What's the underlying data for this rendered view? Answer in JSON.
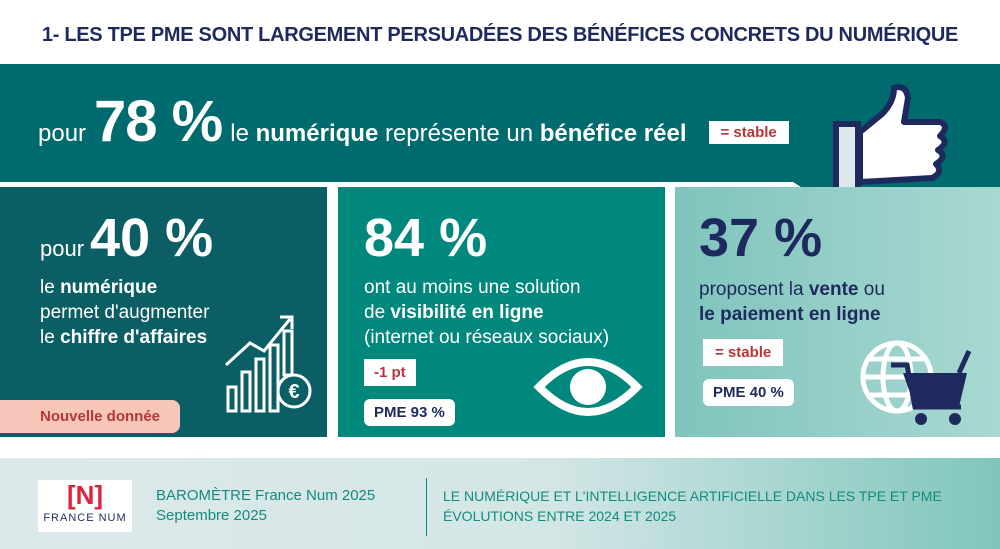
{
  "title": "1- LES TPE PME SONT LARGEMENT PERSUADÉES DES BÉNÉFICES CONCRETS DU NUMÉRIQUE",
  "headline": {
    "prefix": "pour",
    "value": "78 %",
    "t1": "le",
    "b1": "numérique",
    "t2": "représente un",
    "b2": "bénéfice réel",
    "badge": "= stable"
  },
  "cards": [
    {
      "prefix": "pour",
      "value": "40 %",
      "l1b": "le ",
      "l1": "numérique",
      "l2": "permet d'augmenter",
      "l3a": "le ",
      "l3": "chiffre d'affaires",
      "badge": "Nouvelle donnée"
    },
    {
      "value": "84 %",
      "l1": "ont au moins une solution",
      "l2a": "de ",
      "l2": "visibilité en ligne",
      "l3": "(internet ou réseaux sociaux)",
      "badge": "-1 pt",
      "pme": "PME 93 %"
    },
    {
      "value": "37 %",
      "l1a": "proposent la ",
      "l1": "vente",
      "l1c": " ou",
      "l2": "le paiement en ligne",
      "badge": "= stable",
      "pme": "PME 40 %"
    }
  ],
  "footer": {
    "logo_mark": "[N]",
    "logo_text": "FRANCE NUM",
    "line1": "BAROMÈTRE France Num 2025",
    "line2": "Septembre 2025",
    "right1": "LE NUMÉRIQUE ET L'INTELLIGENCE ARTIFICIELLE DANS LES TPE ET PME",
    "right2": "ÉVOLUTIONS ENTRE 2024 ET 2025"
  },
  "colors": {
    "navy": "#1e2a5e",
    "teal_dark": "#006b6e",
    "teal": "#00887c",
    "teal_light": "#8ccbc5",
    "red": "#b5363b"
  }
}
